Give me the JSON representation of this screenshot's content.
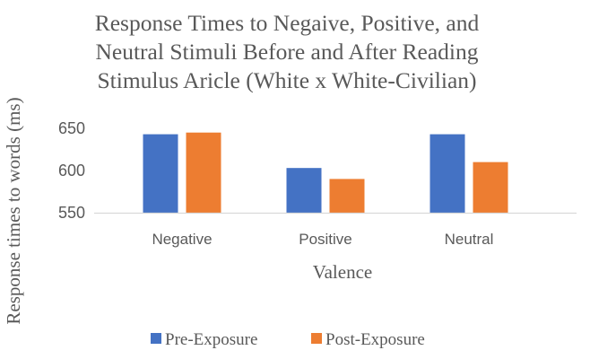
{
  "chart_data": {
    "type": "bar",
    "title": "Response Times to Negaive, Positive, and Neutral Stimuli Before and After Reading Stimulus Aricle (White x White-Civilian)",
    "title_lines": [
      "Response Times to Negaive, Positive, and",
      "Neutral Stimuli Before and After Reading",
      "Stimulus Aricle (White x White-Civilian)"
    ],
    "xlabel": "Valence",
    "ylabel": "Response times to words (ms)",
    "categories": [
      "Negative",
      "Positive",
      "Neutral"
    ],
    "series": [
      {
        "name": "Pre-Exposure",
        "values": [
          643,
          603,
          643
        ],
        "color": "#4472C4"
      },
      {
        "name": "Post-Exposure",
        "values": [
          645,
          590,
          610
        ],
        "color": "#ED7D31"
      }
    ],
    "ylim": [
      550,
      650
    ],
    "yticks": [
      550,
      600,
      650
    ],
    "legend_position": "bottom",
    "grid": false
  }
}
